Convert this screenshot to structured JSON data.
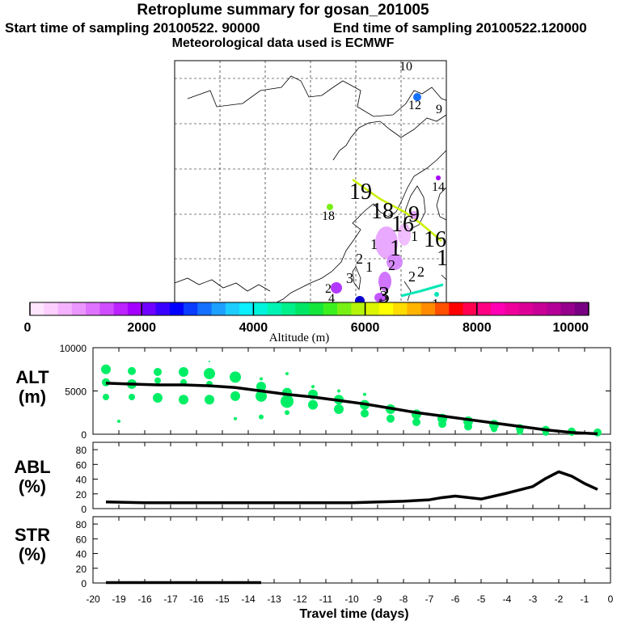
{
  "title": {
    "main": "Retroplume summary for gosan_201005",
    "start": "Start time of sampling 20100522. 90000",
    "end": "End time of sampling 20100522.120000",
    "met": "Meteorological data used is ECMWF"
  },
  "map": {
    "labels": [
      {
        "text": "10",
        "kind": "small"
      },
      {
        "text": "12",
        "kind": "small"
      },
      {
        "text": "9",
        "kind": "small"
      },
      {
        "text": "19",
        "kind": "large"
      },
      {
        "text": "14",
        "kind": "small"
      },
      {
        "text": "18",
        "kind": "small"
      },
      {
        "text": "18",
        "kind": "large"
      },
      {
        "text": "16",
        "kind": "large"
      },
      {
        "text": "9",
        "kind": "large"
      },
      {
        "text": "1",
        "kind": "medium"
      },
      {
        "text": "1",
        "kind": "large"
      },
      {
        "text": "1",
        "kind": "medium"
      },
      {
        "text": "16",
        "kind": "large"
      },
      {
        "text": "1",
        "kind": "large"
      },
      {
        "text": "2",
        "kind": "medium"
      },
      {
        "text": "1",
        "kind": "medium"
      },
      {
        "text": "2",
        "kind": "medium"
      },
      {
        "text": "3",
        "kind": "medium"
      },
      {
        "text": "2",
        "kind": "medium"
      },
      {
        "text": "2",
        "kind": "medium"
      },
      {
        "text": "3",
        "kind": "medium"
      },
      {
        "text": "2",
        "kind": "small"
      },
      {
        "text": "4",
        "kind": "small"
      },
      {
        "text": "3",
        "kind": "large"
      },
      {
        "text": "1",
        "kind": "medium"
      },
      {
        "text": "1",
        "kind": "medium"
      },
      {
        "text": "1",
        "kind": "medium"
      }
    ]
  },
  "colorbar": {
    "ticks": [
      "0",
      "2000",
      "4000",
      "6000",
      "8000",
      "10000"
    ],
    "label": "Altitude (m)",
    "colors": [
      "#ffe6ff",
      "#fccfff",
      "#f5b3ff",
      "#eb96ff",
      "#df73ff",
      "#cf4dff",
      "#bb22ff",
      "#a400ff",
      "#7000ff",
      "#3a00ff",
      "#0000ff",
      "#0a3cff",
      "#1470ff",
      "#1ea0ff",
      "#1ecdff",
      "#0af0ff",
      "#00f5dc",
      "#00f5b4",
      "#00f08c",
      "#00e664",
      "#14e63c",
      "#3cf020",
      "#78f014",
      "#b4f50a",
      "#dcf500",
      "#ffff00",
      "#ffdc00",
      "#ffb400",
      "#ff8c00",
      "#ff5000",
      "#ff0000",
      "#ff0050",
      "#ff0082",
      "#ff00b4",
      "#f0009b",
      "#dc0096",
      "#c80096",
      "#b40096",
      "#96008c",
      "#780082"
    ]
  },
  "panels": {
    "alt": {
      "label": "ALT",
      "unit": "(m)",
      "yticks": [
        "0",
        "5000",
        "10000"
      ]
    },
    "abl": {
      "label": "ABL",
      "unit": "(%)",
      "yticks": [
        "0",
        "20",
        "40",
        "60",
        "80"
      ]
    },
    "str": {
      "label": "STR",
      "unit": "(%)",
      "yticks": [
        "0",
        "20",
        "40",
        "60",
        "80"
      ]
    }
  },
  "xaxis": {
    "ticks": [
      "-20",
      "-19",
      "-16",
      "-17",
      "-16",
      "-15",
      "-14",
      "-13",
      "-12",
      "-11",
      "-10",
      "-9",
      "-8",
      "-7",
      "-6",
      "-5",
      "-4",
      "-3",
      "-2",
      "-1",
      "0"
    ],
    "label": "Travel time (days)"
  },
  "chart_data": [
    {
      "type": "line",
      "title": "ALT (m)",
      "xlabel": "Travel time (days)",
      "ylabel": "Altitude (m)",
      "xlim": [
        -20,
        0
      ],
      "ylim": [
        0,
        10000
      ],
      "x": [
        -19.5,
        -18.5,
        -17.5,
        -16.5,
        -15.5,
        -14.5,
        -13.5,
        -12.5,
        -11.5,
        -10.5,
        -9.5,
        -8.5,
        -7.5,
        -6.5,
        -5.5,
        -4.5,
        -3.5,
        -2.5,
        -1.5,
        -0.5
      ],
      "series": [
        {
          "name": "mean altitude",
          "values": [
            5900,
            5800,
            5700,
            5700,
            5600,
            5400,
            5000,
            4600,
            4300,
            3900,
            3500,
            3000,
            2500,
            2100,
            1700,
            1300,
            900,
            500,
            200,
            50
          ]
        }
      ],
      "scatter": {
        "name": "altitude clusters",
        "color": "#00ee66",
        "points": [
          {
            "x": -19.5,
            "y": 7500,
            "r": 6
          },
          {
            "x": -19.5,
            "y": 6000,
            "r": 5
          },
          {
            "x": -19.5,
            "y": 4300,
            "r": 4
          },
          {
            "x": -19,
            "y": 1500,
            "r": 2
          },
          {
            "x": -18.5,
            "y": 7300,
            "r": 5
          },
          {
            "x": -18.5,
            "y": 5800,
            "r": 6
          },
          {
            "x": -18.5,
            "y": 4300,
            "r": 4
          },
          {
            "x": -17.5,
            "y": 7200,
            "r": 5
          },
          {
            "x": -17.5,
            "y": 6200,
            "r": 4
          },
          {
            "x": -17.5,
            "y": 4200,
            "r": 6
          },
          {
            "x": -16.5,
            "y": 7200,
            "r": 6
          },
          {
            "x": -16.5,
            "y": 6000,
            "r": 4
          },
          {
            "x": -16.5,
            "y": 4000,
            "r": 6
          },
          {
            "x": -15.5,
            "y": 7000,
            "r": 7
          },
          {
            "x": -15.5,
            "y": 5800,
            "r": 4
          },
          {
            "x": -15.5,
            "y": 4000,
            "r": 6
          },
          {
            "x": -15.5,
            "y": 8400,
            "r": 1
          },
          {
            "x": -14.5,
            "y": 6600,
            "r": 7
          },
          {
            "x": -14.5,
            "y": 4400,
            "r": 6
          },
          {
            "x": -14.5,
            "y": 1800,
            "r": 2
          },
          {
            "x": -13.5,
            "y": 5500,
            "r": 6
          },
          {
            "x": -13.5,
            "y": 4400,
            "r": 7
          },
          {
            "x": -13.5,
            "y": 2000,
            "r": 3
          },
          {
            "x": -13.5,
            "y": 6400,
            "r": 2
          },
          {
            "x": -12.5,
            "y": 4800,
            "r": 6
          },
          {
            "x": -12.5,
            "y": 3800,
            "r": 8
          },
          {
            "x": -12.5,
            "y": 2500,
            "r": 3
          },
          {
            "x": -12.5,
            "y": 7000,
            "r": 2
          },
          {
            "x": -11.5,
            "y": 4600,
            "r": 6
          },
          {
            "x": -11.5,
            "y": 3400,
            "r": 6
          },
          {
            "x": -11.5,
            "y": 5500,
            "r": 2
          },
          {
            "x": -10.5,
            "y": 4000,
            "r": 6
          },
          {
            "x": -10.5,
            "y": 2900,
            "r": 6
          },
          {
            "x": -10.5,
            "y": 5000,
            "r": 2
          },
          {
            "x": -9.5,
            "y": 3400,
            "r": 6
          },
          {
            "x": -9.5,
            "y": 2400,
            "r": 5
          },
          {
            "x": -9.5,
            "y": 4600,
            "r": 2
          },
          {
            "x": -8.5,
            "y": 2900,
            "r": 6
          },
          {
            "x": -8.5,
            "y": 1800,
            "r": 5
          },
          {
            "x": -7.5,
            "y": 2300,
            "r": 6
          },
          {
            "x": -7.5,
            "y": 1400,
            "r": 5
          },
          {
            "x": -6.5,
            "y": 1800,
            "r": 6
          },
          {
            "x": -6.5,
            "y": 1200,
            "r": 5
          },
          {
            "x": -5.5,
            "y": 1500,
            "r": 6
          },
          {
            "x": -5.5,
            "y": 900,
            "r": 5
          },
          {
            "x": -4.5,
            "y": 1100,
            "r": 6
          },
          {
            "x": -4.5,
            "y": 600,
            "r": 4
          },
          {
            "x": -3.5,
            "y": 700,
            "r": 5
          },
          {
            "x": -3.5,
            "y": 300,
            "r": 4
          },
          {
            "x": -2.5,
            "y": 500,
            "r": 5
          },
          {
            "x": -2.5,
            "y": 200,
            "r": 4
          },
          {
            "x": -1.5,
            "y": 300,
            "r": 5
          },
          {
            "x": -1.5,
            "y": 100,
            "r": 3
          },
          {
            "x": -0.5,
            "y": 200,
            "r": 5
          },
          {
            "x": -0.5,
            "y": 50,
            "r": 3
          }
        ]
      }
    },
    {
      "type": "line",
      "title": "ABL (%)",
      "xlabel": "Travel time (days)",
      "ylabel": "ABL (%)",
      "xlim": [
        -20,
        0
      ],
      "ylim": [
        0,
        90
      ],
      "x": [
        -19.5,
        -18,
        -16,
        -14,
        -12,
        -10,
        -8,
        -7,
        -6.5,
        -6,
        -5,
        -4,
        -3,
        -2.5,
        -2,
        -1.5,
        -1,
        -0.5
      ],
      "series": [
        {
          "name": "ABL fraction",
          "values": [
            9,
            8,
            8,
            8,
            8,
            8,
            10,
            12,
            15,
            17,
            13,
            21,
            30,
            41,
            50,
            44,
            34,
            26
          ]
        }
      ]
    },
    {
      "type": "line",
      "title": "STR (%)",
      "xlabel": "Travel time (days)",
      "ylabel": "STR (%)",
      "xlim": [
        -20,
        0
      ],
      "ylim": [
        0,
        90
      ],
      "x": [
        -19.5,
        -13.5
      ],
      "series": [
        {
          "name": "stratosphere fraction",
          "values": [
            0.5,
            0.5
          ]
        }
      ]
    }
  ]
}
